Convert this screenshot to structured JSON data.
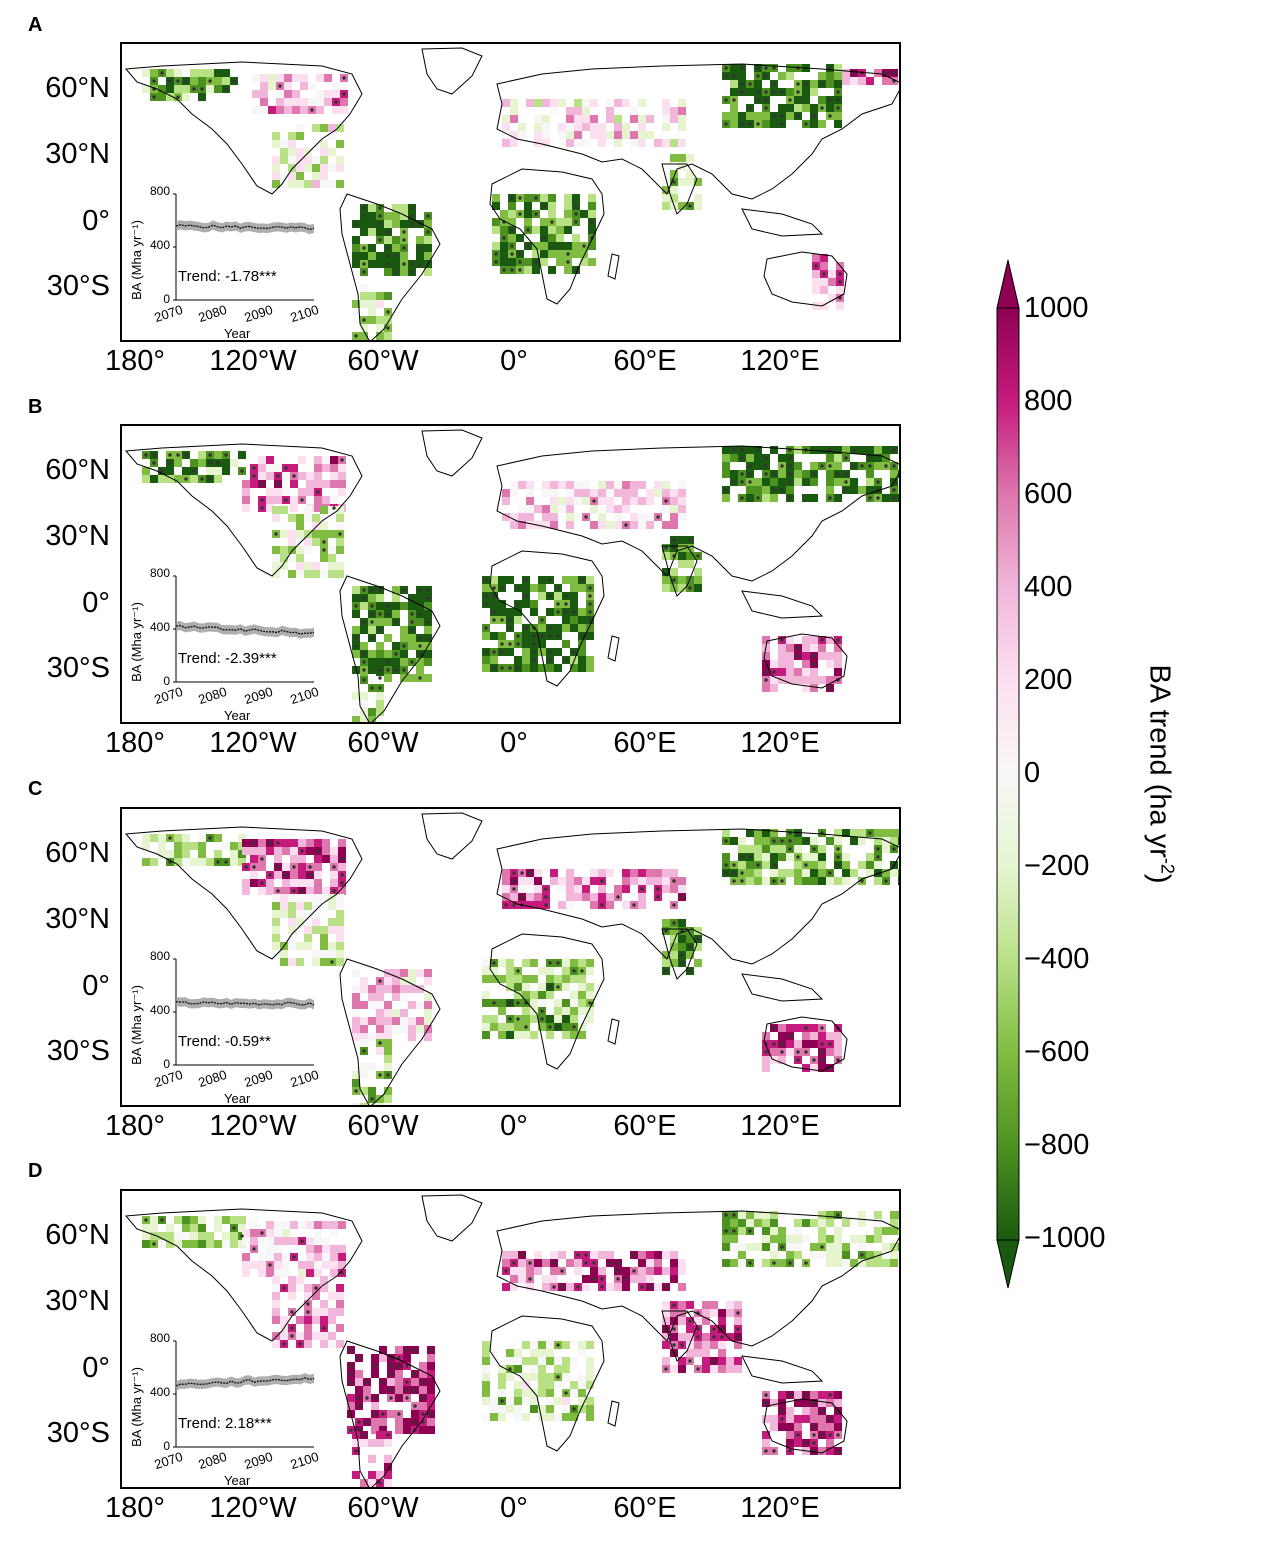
{
  "panels": [
    {
      "letter": "A",
      "trend": "Trend: -1.78***",
      "baseline": 560,
      "slope": -0.35,
      "pattern": "A"
    },
    {
      "letter": "B",
      "trend": "Trend: -2.39***",
      "baseline": 420,
      "slope": -0.9,
      "pattern": "B"
    },
    {
      "letter": "C",
      "trend": "Trend: -0.59**",
      "baseline": 470,
      "slope": -0.15,
      "pattern": "C"
    },
    {
      "letter": "D",
      "trend": "Trend: 2.18***",
      "baseline": 470,
      "slope": 0.8,
      "pattern": "D"
    }
  ],
  "lat_labels": [
    "60°N",
    "30°N",
    "0°",
    "30°S"
  ],
  "lon_labels": [
    "180°",
    "120°W",
    "60°W",
    "0°",
    "60°E",
    "120°E"
  ],
  "inset": {
    "ylabel": "BA (Mha yr⁻¹)",
    "xlabel": "Year",
    "yticks": [
      "800",
      "400",
      "0"
    ],
    "xticks": [
      "2070",
      "2080",
      "2090",
      "2100"
    ],
    "ylim": [
      0,
      800
    ],
    "xlim": [
      2070,
      2100
    ]
  },
  "colorbar": {
    "title": "BA trend (ha yr",
    "title_sup": "-2",
    "title_end": ")",
    "ticks": [
      "1000",
      "800",
      "600",
      "400",
      "200",
      "0",
      "−200",
      "−400",
      "−600",
      "−800",
      "−1000"
    ],
    "min": -1000,
    "max": 1000,
    "colors": [
      "#1a5a10",
      "#4d9221",
      "#7fbc41",
      "#b8e186",
      "#e6f5d0",
      "#f7f7f7",
      "#fde0ef",
      "#f1b6da",
      "#de77ae",
      "#c51b7d",
      "#8e0152"
    ]
  }
}
